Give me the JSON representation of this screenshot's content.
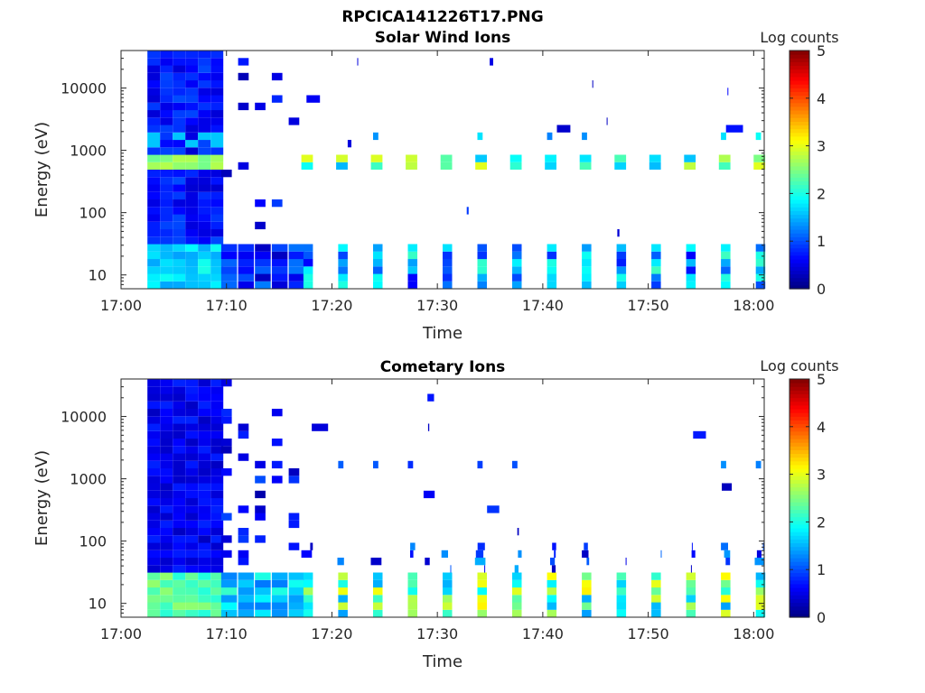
{
  "figure_title": "RPCICA141226T17.PNG",
  "chart_data": [
    {
      "type": "heatmap",
      "title": "Solar Wind Ions",
      "xlabel": "Time",
      "ylabel": "Energy (eV)",
      "x_ticks": [
        "17:00",
        "17:10",
        "17:20",
        "17:30",
        "17:40",
        "17:50",
        "18:00"
      ],
      "x_range_minutes": [
        0,
        61
      ],
      "y_scale": "log",
      "y_ticks": [
        10,
        100,
        1000,
        10000
      ],
      "y_tick_labels": [
        "10",
        "100",
        "1000",
        "10000"
      ],
      "y_range": [
        6,
        40000
      ],
      "colorbar": {
        "label": "Log counts",
        "min": 0,
        "max": 5,
        "ticks": [
          "0",
          "1",
          "2",
          "3",
          "4",
          "5"
        ],
        "colormap": "jet"
      },
      "grid": false,
      "features": [
        {
          "description": "broadband continuous coverage",
          "t_start": 2.5,
          "t_end": 9.0,
          "level": 1.0
        },
        {
          "description": "solar wind proton peak",
          "energy_eV": 700,
          "level": 2.5
        },
        {
          "description": "periodic bursts",
          "period_minutes": 3.3,
          "t_start": 17.0,
          "t_end": 61.0
        }
      ]
    },
    {
      "type": "heatmap",
      "title": "Cometary Ions",
      "xlabel": "Time",
      "ylabel": "Energy (eV)",
      "x_ticks": [
        "17:00",
        "17:10",
        "17:20",
        "17:30",
        "17:40",
        "17:50",
        "18:00"
      ],
      "x_range_minutes": [
        0,
        61
      ],
      "y_scale": "log",
      "y_ticks": [
        10,
        100,
        1000,
        10000
      ],
      "y_tick_labels": [
        "10",
        "100",
        "1000",
        "10000"
      ],
      "y_range": [
        6,
        40000
      ],
      "colorbar": {
        "label": "Log counts",
        "min": 0,
        "max": 5,
        "ticks": [
          "0",
          "1",
          "2",
          "3",
          "4",
          "5"
        ],
        "colormap": "jet"
      },
      "grid": false,
      "features": [
        {
          "description": "broadband continuous coverage",
          "t_start": 2.5,
          "t_end": 9.0,
          "level": 0.8
        },
        {
          "description": "low energy cometary ions",
          "energy_range_eV": [
            6,
            100
          ],
          "level": 2.5
        },
        {
          "description": "periodic bursts",
          "period_minutes": 3.3,
          "t_start": 17.0,
          "t_end": 61.0
        }
      ]
    }
  ]
}
